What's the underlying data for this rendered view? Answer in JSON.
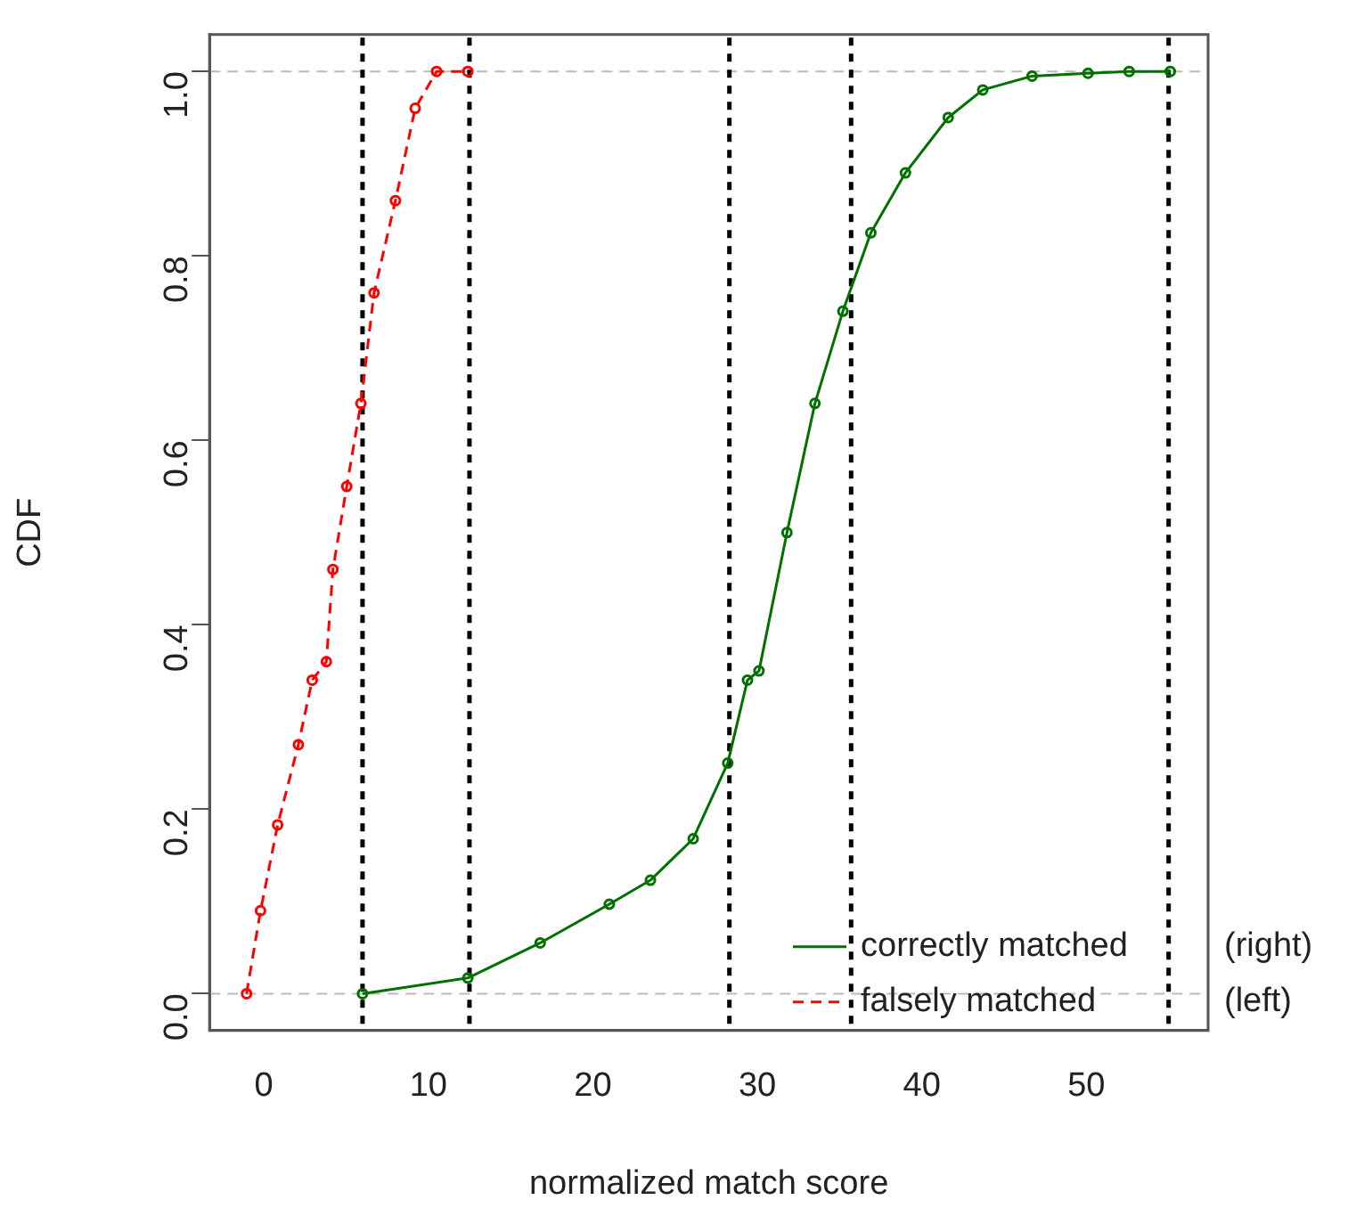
{
  "chart_data": {
    "type": "line",
    "xlabel": "normalized match score",
    "ylabel": "CDF",
    "xlim": [
      -3.3,
      57.4
    ],
    "xticks": [
      0,
      10,
      20,
      30,
      40,
      50
    ],
    "ylim": [
      -0.04,
      1.04
    ],
    "yticks": [
      {
        "value": 0,
        "label": "0.0"
      },
      0.2,
      0.4,
      0.6,
      0.8,
      {
        "value": 1,
        "label": "1.0"
      }
    ],
    "grid": false,
    "legend": "bottom right",
    "marker": "circle",
    "series": [
      {
        "name": "correctly matched",
        "color": "#007000",
        "line_style": "solid",
        "x": [
          6.0,
          12.4,
          16.8,
          21.0,
          23.5,
          26.1,
          28.2,
          29.4,
          30.1,
          31.8,
          33.5,
          35.2,
          36.9,
          39.0,
          41.6,
          43.7,
          46.7,
          50.1,
          52.6,
          55.1
        ],
        "values": [
          0,
          0.017,
          0.055,
          0.097,
          0.123,
          0.168,
          0.25,
          0.34,
          0.35,
          0.5,
          0.64,
          0.74,
          0.825,
          0.89,
          0.95,
          0.98,
          0.995,
          0.998,
          1,
          1
        ]
      },
      {
        "name": "falsely matched",
        "color": "#ff0000",
        "line_style": "dashed",
        "x": [
          -1.05,
          -0.2,
          0.84,
          2.1,
          2.94,
          3.8,
          4.2,
          5.04,
          5.9,
          6.7,
          8.0,
          9.2,
          10.5,
          12.4
        ],
        "values": [
          0,
          0.09,
          0.183,
          0.27,
          0.34,
          0.36,
          0.46,
          0.55,
          0.64,
          0.76,
          0.86,
          0.96,
          1,
          1
        ]
      }
    ],
    "ref_lines": [
      {
        "axis": "y",
        "value": 0,
        "color": "#bbbbbb",
        "line_style": "dashed"
      },
      {
        "axis": "y",
        "value": 1,
        "color": "#bbbbbb",
        "line_style": "dashed"
      },
      {
        "axis": "x",
        "value": 6,
        "color": "#000000",
        "line_style": "dotted"
      },
      {
        "axis": "x",
        "value": 12.5,
        "color": "#000000",
        "line_style": "dotted"
      },
      {
        "axis": "x",
        "value": 28.3,
        "color": "#000000",
        "line_style": "dotted"
      },
      {
        "axis": "x",
        "value": 35.7,
        "color": "#000000",
        "line_style": "dotted"
      },
      {
        "axis": "x",
        "value": 55,
        "color": "#000000",
        "line_style": "dotted"
      }
    ],
    "annotations": [
      "(right)",
      "(left)"
    ]
  }
}
